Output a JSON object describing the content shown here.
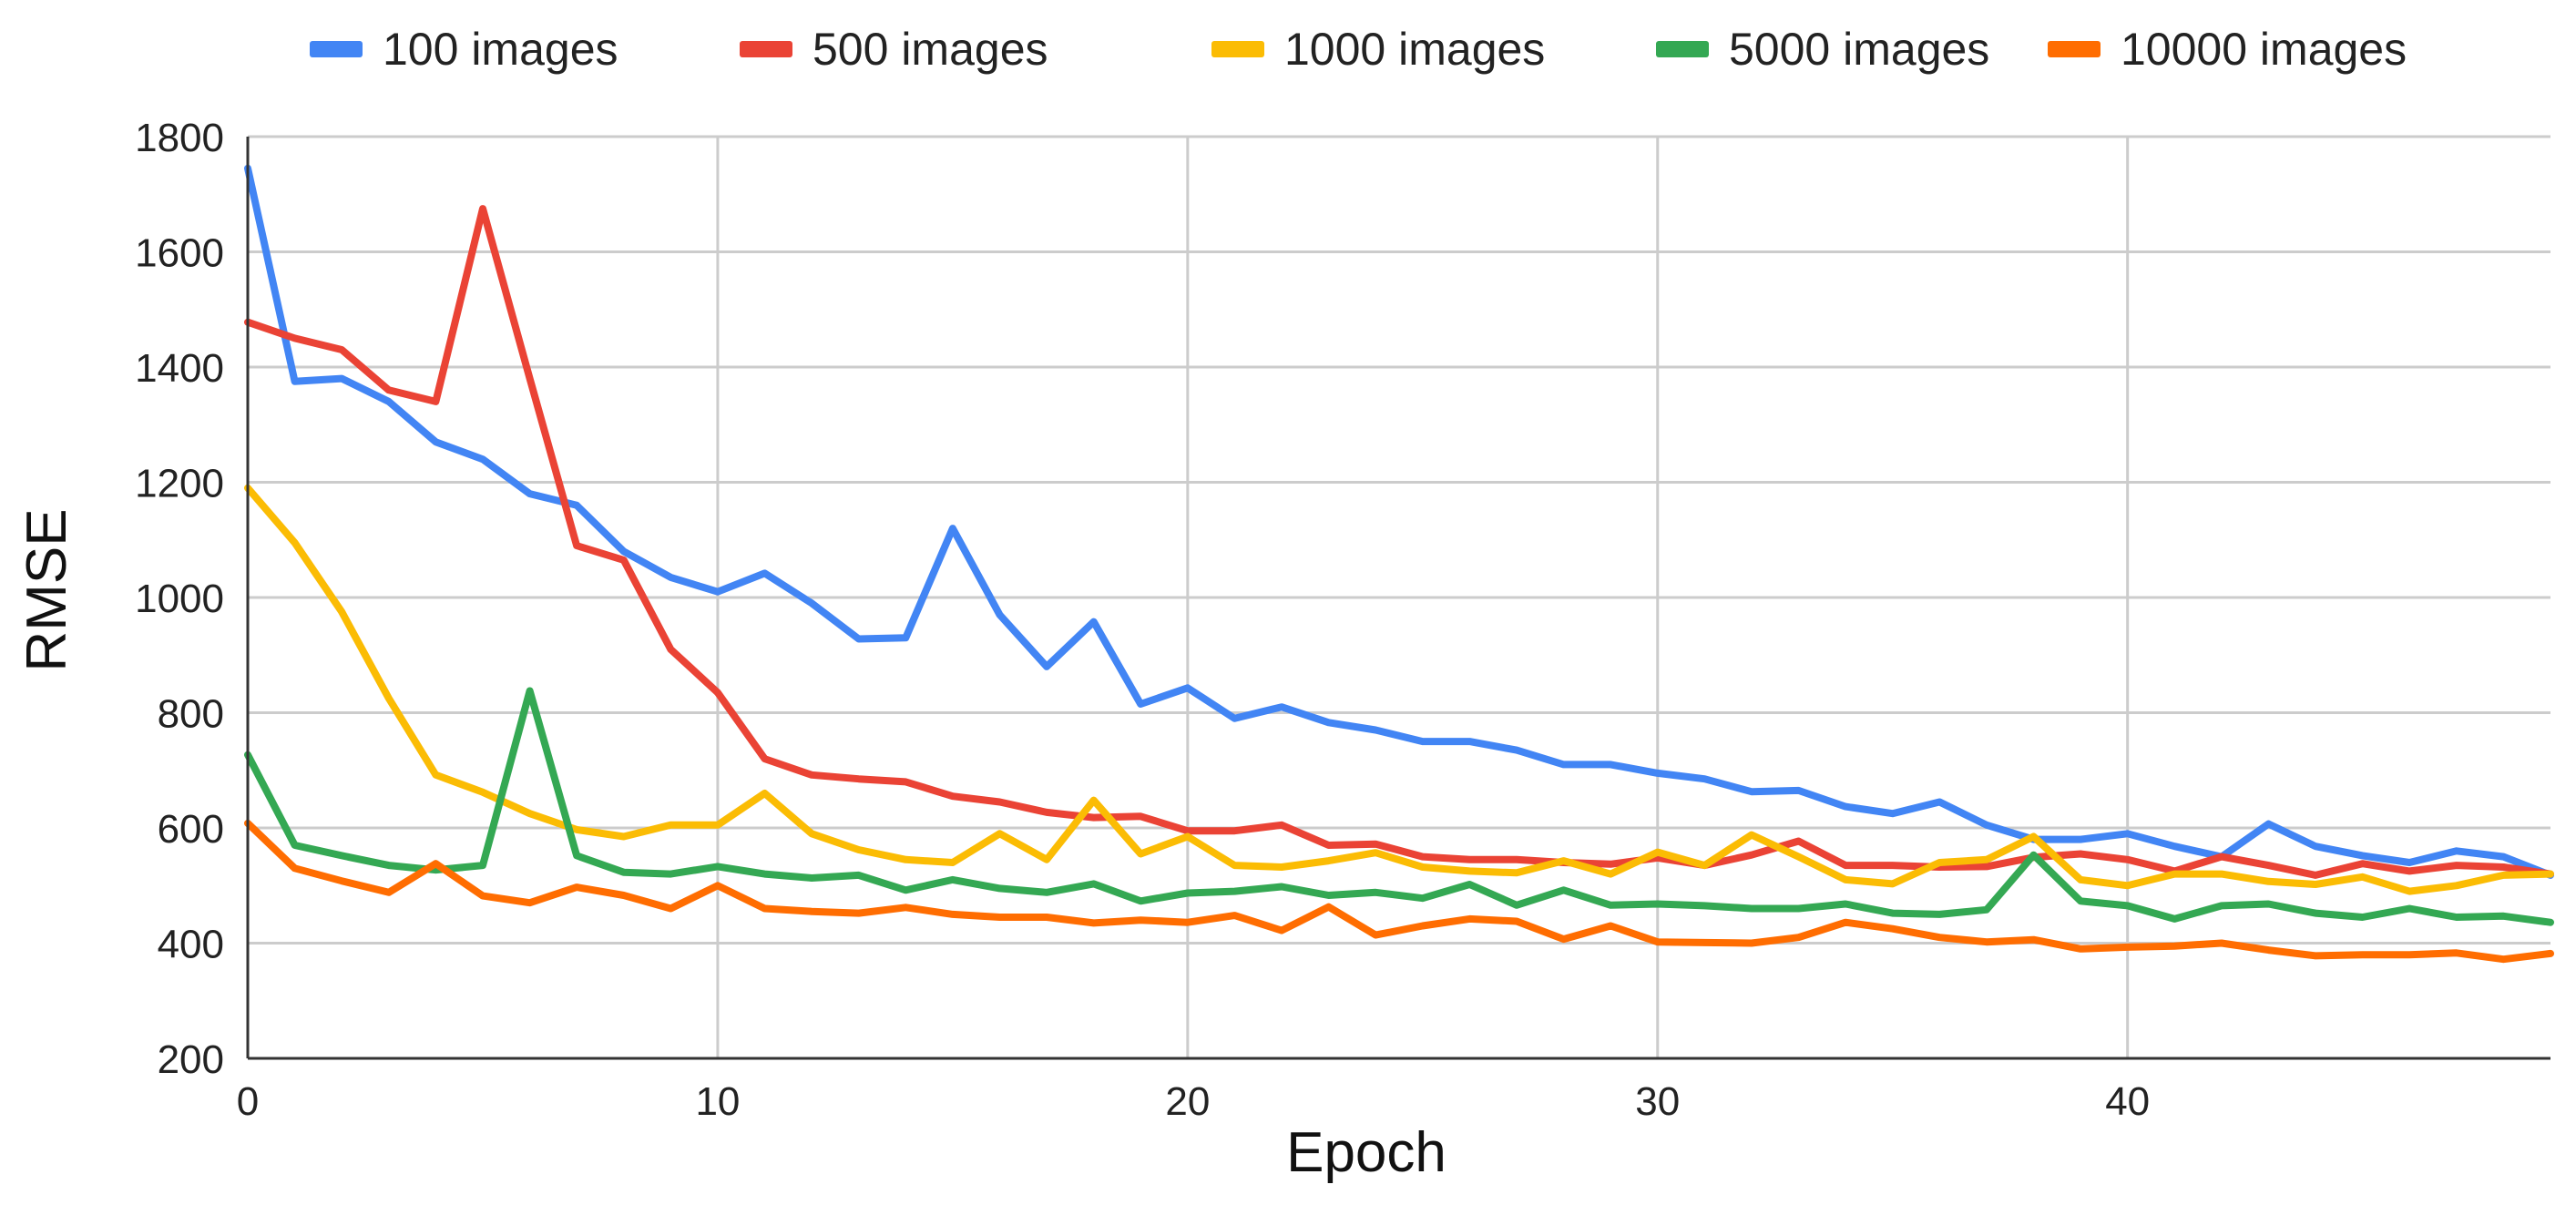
{
  "chart_data": {
    "type": "line",
    "title": "",
    "xlabel": "Epoch",
    "ylabel": "RMSE",
    "xlim": [
      0,
      49
    ],
    "ylim": [
      200,
      1800
    ],
    "x_ticks": [
      0,
      10,
      20,
      30,
      40
    ],
    "y_ticks": [
      200,
      400,
      600,
      800,
      1000,
      1200,
      1400,
      1600,
      1800
    ],
    "grid": true,
    "legend_position": "top",
    "x": [
      0,
      1,
      2,
      3,
      4,
      5,
      6,
      7,
      8,
      9,
      10,
      11,
      12,
      13,
      14,
      15,
      16,
      17,
      18,
      19,
      20,
      21,
      22,
      23,
      24,
      25,
      26,
      27,
      28,
      29,
      30,
      31,
      32,
      33,
      34,
      35,
      36,
      37,
      38,
      39,
      40,
      41,
      42,
      43,
      44,
      45,
      46,
      47,
      48,
      49
    ],
    "series": [
      {
        "name": "100 images",
        "color": "#4285F4",
        "values": [
          1745,
          1375,
          1380,
          1340,
          1270,
          1240,
          1180,
          1160,
          1080,
          1035,
          1010,
          1042,
          990,
          928,
          930,
          1120,
          970,
          880,
          958,
          815,
          843,
          790,
          810,
          783,
          770,
          750,
          750,
          735,
          710,
          710,
          695,
          685,
          663,
          665,
          637,
          625,
          645,
          605,
          580,
          580,
          590,
          568,
          550,
          607,
          568,
          552,
          540,
          560,
          550,
          518
        ]
      },
      {
        "name": "500 images",
        "color": "#EA4335",
        "values": [
          1478,
          1450,
          1430,
          1360,
          1340,
          1675,
          1380,
          1090,
          1065,
          910,
          835,
          720,
          692,
          685,
          680,
          655,
          645,
          627,
          618,
          620,
          595,
          595,
          605,
          570,
          572,
          550,
          545,
          545,
          540,
          537,
          548,
          535,
          553,
          577,
          535,
          535,
          532,
          533,
          549,
          555,
          545,
          525,
          550,
          535,
          518,
          538,
          525,
          535,
          532,
          520
        ]
      },
      {
        "name": "1000 images",
        "color": "#FBBC04",
        "values": [
          1190,
          1095,
          975,
          825,
          692,
          662,
          625,
          597,
          585,
          605,
          605,
          660,
          590,
          562,
          545,
          540,
          590,
          545,
          648,
          555,
          585,
          535,
          532,
          543,
          557,
          532,
          525,
          522,
          543,
          520,
          558,
          535,
          588,
          550,
          510,
          503,
          540,
          545,
          585,
          510,
          500,
          520,
          520,
          507,
          502,
          515,
          490,
          500,
          518,
          520
        ]
      },
      {
        "name": "5000 images",
        "color": "#34A853",
        "values": [
          727,
          570,
          552,
          535,
          527,
          535,
          838,
          552,
          523,
          520,
          533,
          520,
          513,
          518,
          492,
          510,
          495,
          488,
          503,
          473,
          487,
          490,
          498,
          483,
          488,
          478,
          502,
          466,
          492,
          466,
          468,
          465,
          460,
          460,
          468,
          452,
          450,
          458,
          553,
          473,
          465,
          442,
          465,
          468,
          452,
          445,
          460,
          445,
          447,
          436
        ]
      },
      {
        "name": "10000 images",
        "color": "#FF6D01",
        "values": [
          608,
          530,
          508,
          488,
          538,
          482,
          470,
          497,
          483,
          460,
          500,
          460,
          455,
          452,
          462,
          450,
          445,
          445,
          435,
          440,
          436,
          448,
          422,
          463,
          414,
          430,
          442,
          438,
          407,
          430,
          402,
          401,
          400,
          410,
          436,
          425,
          410,
          402,
          406,
          390,
          393,
          395,
          400,
          388,
          378,
          380,
          380,
          383,
          372,
          382
        ]
      }
    ]
  }
}
